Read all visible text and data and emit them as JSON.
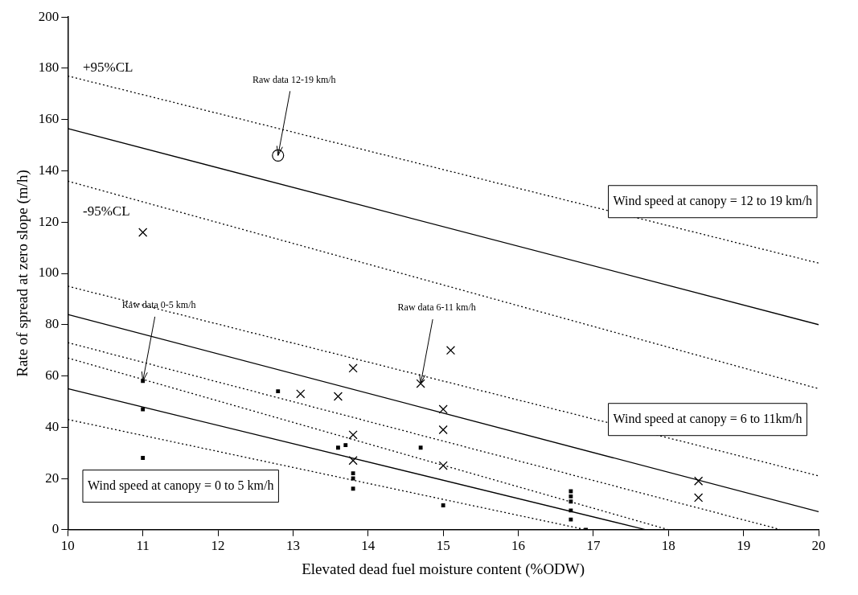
{
  "chart_data": {
    "type": "line",
    "xlabel": "Elevated dead fuel moisture content (%ODW)",
    "ylabel": "Rate of spread at zero slope (m/h)",
    "xlim": [
      10,
      20
    ],
    "xticks": [
      10,
      11,
      12,
      13,
      14,
      15,
      16,
      17,
      18,
      19,
      20
    ],
    "ylim": [
      0,
      200
    ],
    "yticks": [
      0,
      20,
      40,
      60,
      80,
      100,
      120,
      140,
      160,
      180,
      200
    ],
    "grid": false,
    "legend": false,
    "series": [
      {
        "color": "#000000",
        "line_style": "solid",
        "marker": "none",
        "x": [
          10,
          20
        ],
        "values": [
          156.5,
          80
        ]
      },
      {
        "color": "#000000",
        "line_style": "dotted",
        "marker": "none",
        "x": [
          10,
          20
        ],
        "values": [
          177,
          104
        ]
      },
      {
        "color": "#000000",
        "line_style": "dotted",
        "marker": "none",
        "x": [
          10,
          20
        ],
        "values": [
          136,
          55
        ]
      },
      {
        "color": "#000000",
        "line_style": "solid",
        "marker": "none",
        "x": [
          10,
          20
        ],
        "values": [
          84,
          7
        ]
      },
      {
        "color": "#000000",
        "line_style": "dotted",
        "marker": "none",
        "x": [
          10,
          20
        ],
        "values": [
          95,
          21
        ]
      },
      {
        "color": "#000000",
        "line_style": "dotted",
        "marker": "none",
        "x": [
          10,
          19.5
        ],
        "values": [
          73,
          0
        ]
      },
      {
        "color": "#000000",
        "line_style": "solid",
        "marker": "none",
        "x": [
          10,
          17.7
        ],
        "values": [
          55,
          0
        ]
      },
      {
        "color": "#000000",
        "line_style": "dotted",
        "marker": "none",
        "x": [
          10,
          18
        ],
        "values": [
          67,
          0
        ]
      },
      {
        "color": "#000000",
        "line_style": "dotted",
        "marker": "none",
        "x": [
          10,
          16.9
        ],
        "values": [
          43,
          0
        ]
      },
      {
        "type": "scatter",
        "color": "#000000",
        "marker": "circle",
        "x": [
          12.8
        ],
        "values": [
          146
        ]
      },
      {
        "type": "scatter",
        "color": "#000000",
        "marker": "cross",
        "x": [
          11,
          13.8,
          13.1,
          13.6,
          14.7,
          15.1,
          15,
          15,
          15,
          13.8,
          13.8,
          18.4,
          18.4
        ],
        "values": [
          116,
          63,
          53,
          52,
          57,
          70,
          47,
          39,
          25,
          37,
          27,
          19,
          12.5
        ]
      },
      {
        "type": "scatter",
        "color": "#000000",
        "marker": "square",
        "x": [
          11,
          11,
          11,
          12.8,
          13.6,
          13.7,
          13.8,
          13.8,
          13.8,
          14.7,
          15,
          16.7,
          16.7,
          16.7,
          16.7,
          16.7,
          16.9
        ],
        "values": [
          58,
          47,
          28,
          54,
          32,
          33,
          22,
          20,
          16,
          32,
          9.5,
          15,
          13,
          11,
          7.5,
          4,
          0
        ]
      }
    ],
    "annotations": [
      "+95%CL",
      "-95%CL",
      {
        "text": "Raw data 12-19 km/h",
        "x": 12.8,
        "y": 146
      },
      {
        "text": "Raw data 0-5 km/h",
        "x": 11,
        "y": 58
      },
      {
        "text": "Raw data 6-11 km/h",
        "x": 14.7,
        "y": 57
      },
      "Wind speed at canopy = 12 to 19 km/h",
      "Wind speed at canopy = 6 to 11km/h",
      "Wind speed at canopy = 0 to 5 km/h"
    ]
  }
}
